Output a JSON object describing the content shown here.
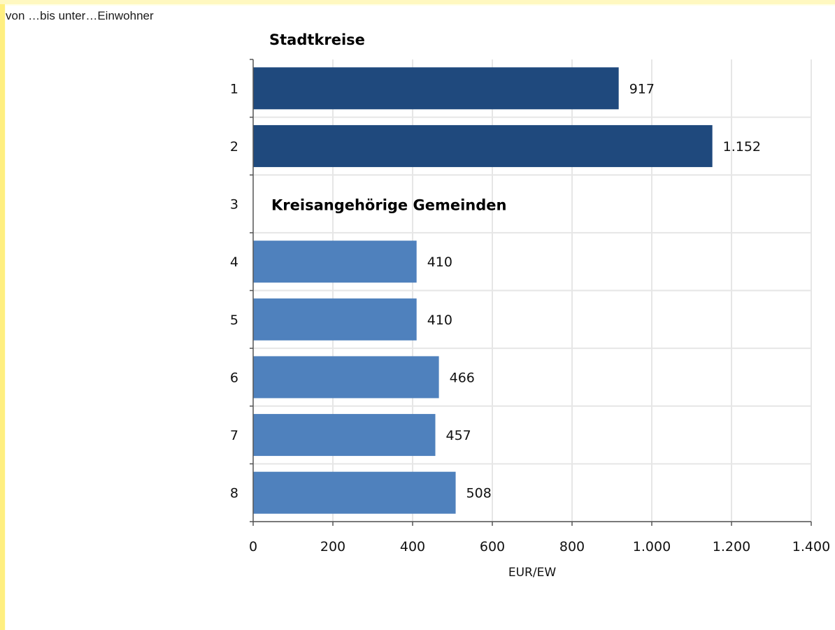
{
  "header": {
    "label": "von …bis unter…Einwohner"
  },
  "chart_data": {
    "type": "bar",
    "orientation": "horizontal",
    "categories": [
      "1",
      "2",
      "3",
      "4",
      "5",
      "6",
      "7",
      "8"
    ],
    "values": [
      917,
      1152,
      null,
      410,
      410,
      466,
      457,
      508
    ],
    "value_labels": [
      "917",
      "1.152",
      "",
      "410",
      "410",
      "466",
      "457",
      "508"
    ],
    "bar_colors": [
      "#1f497d",
      "#1f497d",
      null,
      "#4f81bd",
      "#4f81bd",
      "#4f81bd",
      "#4f81bd",
      "#4f81bd"
    ],
    "group_headings": [
      {
        "text": "Stadtkreise",
        "category": "1"
      },
      {
        "text": "Kreisangehörige Gemeinden",
        "category": "3"
      }
    ],
    "xlabel": "EUR/EW",
    "ylabel": "",
    "xlim": [
      0,
      1400
    ],
    "x_ticks": [
      0,
      200,
      400,
      600,
      800,
      1000,
      1200,
      1400
    ],
    "x_tick_labels": [
      "0",
      "200",
      "400",
      "600",
      "800",
      "1.000",
      "1.200",
      "1.400"
    ],
    "grid": true
  }
}
